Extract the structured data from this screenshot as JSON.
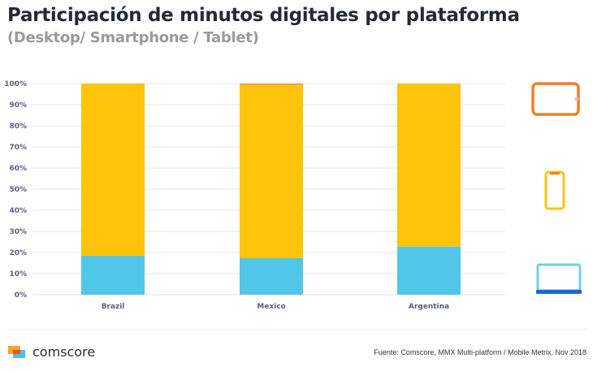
{
  "header": {
    "title": "Participación de minutos digitales por plataforma",
    "subtitle": "(Desktop/ Smartphone / Tablet)"
  },
  "chart_data": {
    "type": "bar",
    "stacked": true,
    "percent": true,
    "title": "Participación de minutos digitales por plataforma",
    "subtitle": "(Desktop/ Smartphone / Tablet)",
    "categories": [
      "Brazil",
      "Mexico",
      "Argentina"
    ],
    "series": [
      {
        "name": "Desktop",
        "color": "#52c6e8",
        "values": [
          18.5,
          17.3,
          22.8
        ]
      },
      {
        "name": "Smartphone",
        "color": "#fec40c",
        "values": [
          81.5,
          82.2,
          77.2
        ]
      },
      {
        "name": "Tablet",
        "color": "#f07f26",
        "values": [
          0.0,
          0.5,
          0.0
        ]
      }
    ],
    "yticks": [
      "0%",
      "10%",
      "20%",
      "30%",
      "40%",
      "50%",
      "60%",
      "70%",
      "80%",
      "90%",
      "100%"
    ],
    "ylim": [
      0,
      100
    ],
    "xlabel": "",
    "ylabel": "",
    "grid": true,
    "legend": "icons on the right: tablet (top), smartphone (middle), desktop (bottom)"
  },
  "legend_icons": [
    {
      "name": "tablet-icon",
      "series": "Tablet",
      "color": "#f07f26"
    },
    {
      "name": "smartphone-icon",
      "series": "Smartphone",
      "color": "#fec40c"
    },
    {
      "name": "laptop-icon",
      "series": "Desktop",
      "color": "#52c6e8"
    }
  ],
  "footer": {
    "logo_text": "comscore",
    "source": "Fuente: Comscore, MMX Multi-platform / Mobile Metrix, Nov 2018"
  }
}
